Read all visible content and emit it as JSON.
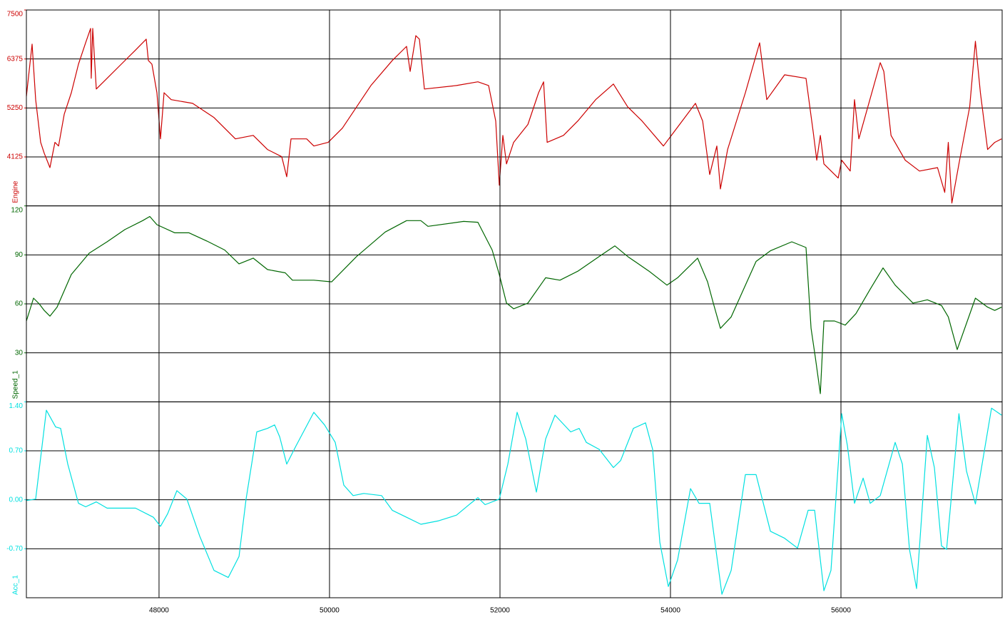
{
  "chart_data": [
    {
      "type": "line",
      "ylabel": "Engine",
      "color": "#cc0000",
      "xlim": [
        46444,
        57891
      ],
      "ylim": [
        3000,
        7500
      ],
      "yticks": [
        4125,
        5250,
        6375,
        7500
      ],
      "x": [
        46444,
        46511,
        46553,
        46611,
        46653,
        46720,
        46779,
        46821,
        46888,
        46971,
        47055,
        47139,
        47197,
        47205,
        47222,
        47264,
        47390,
        47557,
        47724,
        47850,
        47875,
        47917,
        47975,
        48017,
        48059,
        48143,
        48394,
        48645,
        48896,
        49105,
        49272,
        49440,
        49498,
        49548,
        49732,
        49816,
        49984,
        50151,
        50486,
        50737,
        50904,
        50946,
        51013,
        51055,
        51113,
        51490,
        51741,
        51866,
        51950,
        51992,
        52034,
        52076,
        52160,
        52327,
        52453,
        52511,
        52553,
        52745,
        52913,
        53122,
        53331,
        53498,
        53666,
        53917,
        54042,
        54293,
        54377,
        54460,
        54544,
        54586,
        54670,
        54879,
        55046,
        55130,
        55339,
        55590,
        55674,
        55716,
        55758,
        55800,
        55967,
        56009,
        56109,
        56159,
        56210,
        56461,
        56503,
        56587,
        56754,
        56921,
        57133,
        57217,
        57259,
        57301,
        57384,
        57510,
        57577,
        57636,
        57720,
        57804,
        57884
      ],
      "values": [
        5520,
        6715,
        5440,
        4460,
        4210,
        3880,
        4460,
        4375,
        5110,
        5600,
        6255,
        6750,
        7075,
        5930,
        7075,
        5685,
        5930,
        6255,
        6580,
        6830,
        6340,
        6255,
        5600,
        4540,
        5600,
        5440,
        5355,
        5030,
        4540,
        4620,
        4295,
        4130,
        3670,
        4540,
        4540,
        4375,
        4460,
        4785,
        5765,
        6340,
        6665,
        6090,
        6910,
        6830,
        5685,
        5765,
        5850,
        5765,
        4950,
        3475,
        4620,
        3965,
        4460,
        4870,
        5600,
        5850,
        4460,
        4620,
        4950,
        5440,
        5800,
        5275,
        4950,
        4375,
        4700,
        5355,
        4950,
        3720,
        4375,
        3390,
        4295,
        5600,
        6745,
        5440,
        6010,
        5930,
        4700,
        4050,
        4620,
        3965,
        3640,
        4050,
        3800,
        5440,
        4540,
        6290,
        6090,
        4620,
        4050,
        3800,
        3880,
        3310,
        4460,
        3065,
        3965,
        5275,
        6780,
        5600,
        4295,
        4460,
        4540
      ]
    },
    {
      "type": "line",
      "ylabel": "Speed_1",
      "color": "#006600",
      "xlim": [
        46444,
        57891
      ],
      "ylim": [
        0,
        120
      ],
      "yticks": [
        30,
        60,
        90,
        120
      ],
      "x": [
        46444,
        46528,
        46595,
        46653,
        46720,
        46804,
        46971,
        47180,
        47390,
        47599,
        47808,
        47892,
        47975,
        48185,
        48352,
        48561,
        48770,
        48938,
        49105,
        49272,
        49481,
        49565,
        49816,
        50025,
        50318,
        50653,
        50904,
        51071,
        51155,
        51573,
        51741,
        51908,
        51992,
        52076,
        52160,
        52327,
        52536,
        52703,
        52913,
        53163,
        53347,
        53498,
        53749,
        53958,
        54084,
        54318,
        54435,
        54502,
        54586,
        54712,
        55004,
        55172,
        55423,
        55590,
        55649,
        55699,
        55758,
        55800,
        55925,
        56050,
        56176,
        56343,
        56494,
        56636,
        56845,
        57013,
        57180,
        57259,
        57364,
        57577,
        57720,
        57804,
        57884
      ],
      "values": [
        49.5,
        63.5,
        60,
        56,
        52.5,
        58,
        78,
        91,
        98,
        105.5,
        111,
        113.5,
        108.5,
        103.5,
        103.5,
        98.5,
        93,
        84.5,
        88,
        81,
        79,
        74.5,
        74.5,
        73.5,
        89,
        104,
        111,
        111,
        107.5,
        110.5,
        110,
        93,
        78,
        60.5,
        57,
        60.5,
        76,
        74.5,
        80,
        89,
        95.5,
        89,
        80,
        71.5,
        76,
        88,
        73.5,
        60.5,
        45,
        52,
        86,
        92.5,
        98,
        94.5,
        45,
        27.5,
        5,
        49.5,
        49.5,
        47,
        54,
        69,
        82,
        71.5,
        60.5,
        62.5,
        59,
        52,
        32,
        63.5,
        58,
        56,
        58
      ]
    },
    {
      "type": "line",
      "ylabel": "Acc_1",
      "color": "#00e0e0",
      "xlim": [
        46444,
        57891
      ],
      "ylim": [
        -1.4,
        1.4
      ],
      "yticks": [
        {
          "value": -0.7,
          "label": "-0.70"
        },
        {
          "value": 0,
          "label": "0.00"
        },
        {
          "value": 0.7,
          "label": "0.70"
        },
        {
          "value": 1.4,
          "label": "1.40"
        }
      ],
      "xticks": [
        48000,
        50000,
        52000,
        54000,
        56000
      ],
      "x": [
        46444,
        46553,
        46678,
        46787,
        46846,
        46929,
        47055,
        47139,
        47264,
        47390,
        47557,
        47724,
        47934,
        48017,
        48101,
        48210,
        48327,
        48477,
        48645,
        48812,
        48938,
        49021,
        49147,
        49272,
        49356,
        49415,
        49498,
        49607,
        49816,
        49942,
        50067,
        50168,
        50277,
        50402,
        50611,
        50737,
        50904,
        51072,
        51281,
        51490,
        51657,
        51741,
        51825,
        51992,
        52092,
        52201,
        52302,
        52427,
        52536,
        52645,
        52829,
        52929,
        53013,
        53164,
        53331,
        53415,
        53565,
        53707,
        53791,
        53875,
        53975,
        54084,
        54235,
        54335,
        54460,
        54603,
        54712,
        54879,
        55004,
        55172,
        55339,
        55490,
        55615,
        55691,
        55800,
        55883,
        56009,
        56076,
        56159,
        56260,
        56343,
        56461,
        56636,
        56720,
        56804,
        56887,
        57013,
        57096,
        57180,
        57239,
        57384,
        57473,
        57577,
        57766,
        57884
      ],
      "values": [
        -0.01,
        0.01,
        1.28,
        1.04,
        1.02,
        0.51,
        -0.05,
        -0.1,
        -0.03,
        -0.12,
        -0.12,
        -0.12,
        -0.25,
        -0.38,
        -0.2,
        0.13,
        0.01,
        -0.52,
        -1.01,
        -1.11,
        -0.81,
        0.01,
        0.97,
        1.02,
        1.07,
        0.9,
        0.51,
        0.77,
        1.25,
        1.07,
        0.82,
        0.21,
        0.06,
        0.09,
        0.06,
        -0.15,
        -0.25,
        -0.35,
        -0.3,
        -0.22,
        -0.05,
        0.03,
        -0.07,
        0.01,
        0.51,
        1.25,
        0.87,
        0.11,
        0.87,
        1.21,
        0.97,
        1.02,
        0.82,
        0.72,
        0.46,
        0.56,
        1.02,
        1.1,
        0.72,
        -0.61,
        -1.24,
        -0.86,
        0.16,
        -0.05,
        -0.05,
        -1.35,
        -1.01,
        0.36,
        0.36,
        -0.45,
        -0.55,
        -0.69,
        -0.15,
        -0.15,
        -1.3,
        -1.01,
        1.23,
        0.77,
        -0.05,
        0.31,
        -0.05,
        0.06,
        0.82,
        0.51,
        -0.71,
        -1.27,
        0.92,
        0.46,
        -0.66,
        -0.71,
        1.23,
        0.41,
        -0.06,
        1.31,
        1.21
      ]
    }
  ]
}
